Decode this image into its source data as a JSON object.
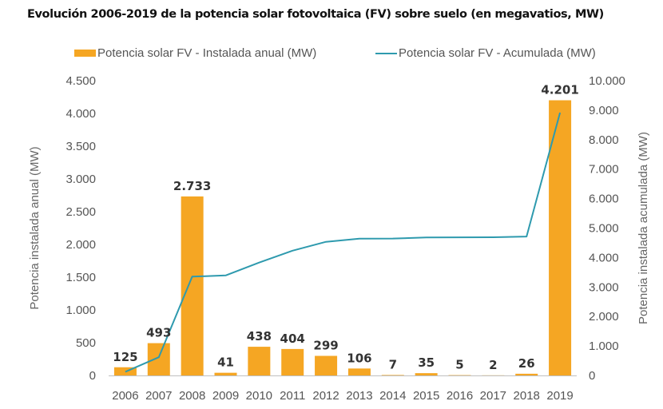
{
  "chart_data": {
    "type": "bar",
    "title": "Evolución 2006-2019 de la potencia solar fotovoltaica (FV) sobre suelo (en megavatios, MW)",
    "categories": [
      "2006",
      "2007",
      "2008",
      "2009",
      "2010",
      "2011",
      "2012",
      "2013",
      "2014",
      "2015",
      "2016",
      "2017",
      "2018",
      "2019"
    ],
    "series": [
      {
        "name": "Potencia solar FV - Instalada anual (MW)",
        "type": "bar",
        "axis": "left",
        "color": "#F5A623",
        "values": [
          125,
          493,
          2733,
          41,
          438,
          404,
          299,
          106,
          7,
          35,
          5,
          2,
          26,
          4201
        ],
        "labels": [
          "125",
          "493",
          "2.733",
          "41",
          "438",
          "404",
          "299",
          "106",
          "7",
          "35",
          "5",
          "2",
          "26",
          "4.201"
        ]
      },
      {
        "name": "Potencia solar FV - Acumulada (MW)",
        "type": "line",
        "axis": "right",
        "color": "#2E9AAE",
        "values": [
          125,
          618,
          3351,
          3392,
          3830,
          4234,
          4533,
          4639,
          4646,
          4681,
          4686,
          4688,
          4714,
          8915
        ]
      }
    ],
    "ylabel": "Potencia instalada anual (MW)",
    "y2label": "Potencia instalada acumulada (MW)",
    "xlabel": "",
    "ylim": [
      0,
      4500
    ],
    "y2lim": [
      0,
      10000
    ],
    "yticks": [
      0,
      500,
      1000,
      1500,
      2000,
      2500,
      3000,
      3500,
      4000,
      4500
    ],
    "ytick_labels": [
      "0",
      "500",
      "1.000",
      "1.500",
      "2.000",
      "2.500",
      "3.000",
      "3.500",
      "4.000",
      "4.500"
    ],
    "y2ticks": [
      0,
      1000,
      2000,
      3000,
      4000,
      5000,
      6000,
      7000,
      8000,
      9000,
      10000
    ],
    "y2tick_labels": [
      "0",
      "1.000",
      "2.000",
      "3.000",
      "4.000",
      "5.000",
      "6.000",
      "7.000",
      "8.000",
      "9.000",
      "10.000"
    ],
    "grid": false,
    "legend_position": "top"
  }
}
